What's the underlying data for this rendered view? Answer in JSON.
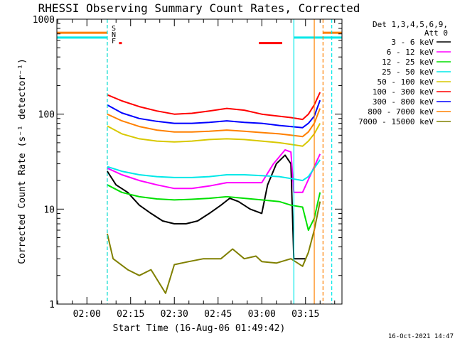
{
  "chart_data": {
    "type": "line",
    "title": "RHESSI Observing Summary Count Rates, Corrected",
    "xlabel": "Start Time (16-Aug-06 01:49:42)",
    "ylabel": "Corrected Count Rate (s⁻¹ detector⁻¹)",
    "y_scale": "log",
    "ylim": [
      1,
      1000
    ],
    "xlim": [
      "01:49:42",
      "03:27:30"
    ],
    "x_tick_labels": [
      "02:00",
      "02:15",
      "02:30",
      "02:45",
      "03:00",
      "03:15"
    ],
    "y_tick_labels": [
      "1",
      "10",
      "100",
      "1000"
    ],
    "legend": {
      "position": "top-right",
      "header": [
        "Det 1,3,4,5,6,9,",
        "Att 0"
      ],
      "entries": [
        {
          "label": "3 - 6 keV",
          "color": "#000000"
        },
        {
          "label": "6 - 12 keV",
          "color": "#ff00ff"
        },
        {
          "label": "12 - 25 keV",
          "color": "#00e000"
        },
        {
          "label": "25 - 50 keV",
          "color": "#00e8e8"
        },
        {
          "label": "50 - 100 keV",
          "color": "#d8c800"
        },
        {
          "label": "100 - 300 keV",
          "color": "#ff0000"
        },
        {
          "label": "300 - 800 keV",
          "color": "#0000ff"
        },
        {
          "label": "800 - 7000 keV",
          "color": "#ff8000"
        },
        {
          "label": "7000 - 15000 keV",
          "color": "#808000"
        }
      ]
    },
    "flag_labels": [
      {
        "label": "S",
        "color": "#ff8000"
      },
      {
        "label": "N",
        "color": "#00e8e8"
      },
      {
        "label": "F",
        "color": "#ff0000"
      }
    ],
    "series": [
      {
        "label": "3 - 6 keV",
        "color": "#000000",
        "points": [
          [
            "02:07",
            25
          ],
          [
            "02:10",
            18
          ],
          [
            "02:14",
            15
          ],
          [
            "02:18",
            11
          ],
          [
            "02:22",
            9
          ],
          [
            "02:26",
            7.5
          ],
          [
            "02:30",
            7
          ],
          [
            "02:34",
            7
          ],
          [
            "02:38",
            7.5
          ],
          [
            "02:42",
            9
          ],
          [
            "02:46",
            11
          ],
          [
            "02:49",
            13
          ],
          [
            "02:52",
            12
          ],
          [
            "02:56",
            10
          ],
          [
            "03:00",
            9
          ],
          [
            "03:02",
            18
          ],
          [
            "03:05",
            30
          ],
          [
            "03:08",
            37
          ],
          [
            "03:10",
            30
          ],
          [
            "03:11",
            3
          ],
          [
            "03:14",
            3
          ],
          [
            "03:15",
            3
          ]
        ]
      },
      {
        "label": "6 - 12 keV",
        "color": "#ff00ff",
        "points": [
          [
            "02:07",
            27
          ],
          [
            "02:12",
            23
          ],
          [
            "02:18",
            20
          ],
          [
            "02:24",
            18
          ],
          [
            "02:30",
            16.5
          ],
          [
            "02:36",
            16.5
          ],
          [
            "02:42",
            17.5
          ],
          [
            "02:48",
            19
          ],
          [
            "02:54",
            19
          ],
          [
            "03:00",
            19
          ],
          [
            "03:04",
            30
          ],
          [
            "03:08",
            42
          ],
          [
            "03:10",
            40
          ],
          [
            "03:11",
            15
          ],
          [
            "03:14",
            15
          ],
          [
            "03:18",
            28
          ],
          [
            "03:20",
            38
          ]
        ]
      },
      {
        "label": "12 - 25 keV",
        "color": "#00e000",
        "points": [
          [
            "02:07",
            18
          ],
          [
            "02:12",
            15
          ],
          [
            "02:18",
            13.5
          ],
          [
            "02:24",
            12.8
          ],
          [
            "02:30",
            12.5
          ],
          [
            "02:36",
            12.7
          ],
          [
            "02:42",
            13
          ],
          [
            "02:48",
            13.5
          ],
          [
            "02:54",
            13
          ],
          [
            "03:00",
            12.5
          ],
          [
            "03:06",
            12
          ],
          [
            "03:10",
            11
          ],
          [
            "03:14",
            10.5
          ],
          [
            "03:16",
            6
          ],
          [
            "03:18",
            8
          ],
          [
            "03:20",
            15
          ]
        ]
      },
      {
        "label": "25 - 50 keV",
        "color": "#00e8e8",
        "points": [
          [
            "02:07",
            28
          ],
          [
            "02:12",
            25
          ],
          [
            "02:18",
            23
          ],
          [
            "02:24",
            22
          ],
          [
            "02:30",
            21.5
          ],
          [
            "02:36",
            21.5
          ],
          [
            "02:42",
            22
          ],
          [
            "02:48",
            23
          ],
          [
            "02:54",
            23
          ],
          [
            "03:00",
            22.5
          ],
          [
            "03:06",
            22
          ],
          [
            "03:10",
            21
          ],
          [
            "03:14",
            20
          ],
          [
            "03:16",
            22
          ],
          [
            "03:18",
            27
          ],
          [
            "03:20",
            33
          ]
        ]
      },
      {
        "label": "50 - 100 keV",
        "color": "#d8c800",
        "points": [
          [
            "02:07",
            75
          ],
          [
            "02:12",
            62
          ],
          [
            "02:18",
            55
          ],
          [
            "02:24",
            52
          ],
          [
            "02:30",
            51
          ],
          [
            "02:36",
            52
          ],
          [
            "02:42",
            54
          ],
          [
            "02:48",
            55
          ],
          [
            "02:54",
            54
          ],
          [
            "03:00",
            52
          ],
          [
            "03:06",
            50
          ],
          [
            "03:10",
            48
          ],
          [
            "03:14",
            46
          ],
          [
            "03:16",
            52
          ],
          [
            "03:18",
            62
          ],
          [
            "03:20",
            80
          ]
        ]
      },
      {
        "label": "100 - 300 keV",
        "color": "#ff0000",
        "points": [
          [
            "02:07",
            160
          ],
          [
            "02:12",
            138
          ],
          [
            "02:18",
            120
          ],
          [
            "02:24",
            108
          ],
          [
            "02:30",
            100
          ],
          [
            "02:36",
            102
          ],
          [
            "02:42",
            108
          ],
          [
            "02:48",
            115
          ],
          [
            "02:54",
            110
          ],
          [
            "03:00",
            100
          ],
          [
            "03:06",
            95
          ],
          [
            "03:10",
            92
          ],
          [
            "03:14",
            88
          ],
          [
            "03:16",
            100
          ],
          [
            "03:18",
            125
          ],
          [
            "03:20",
            170
          ]
        ]
      },
      {
        "label": "300 - 800 keV",
        "color": "#0000ff",
        "points": [
          [
            "02:07",
            125
          ],
          [
            "02:12",
            103
          ],
          [
            "02:18",
            90
          ],
          [
            "02:24",
            84
          ],
          [
            "02:30",
            80
          ],
          [
            "02:36",
            80
          ],
          [
            "02:42",
            82
          ],
          [
            "02:48",
            85
          ],
          [
            "02:54",
            82
          ],
          [
            "03:00",
            80
          ],
          [
            "03:06",
            76
          ],
          [
            "03:10",
            74
          ],
          [
            "03:14",
            72
          ],
          [
            "03:16",
            80
          ],
          [
            "03:18",
            95
          ],
          [
            "03:20",
            140
          ]
        ]
      },
      {
        "label": "800 - 7000 keV",
        "color": "#ff8000",
        "points": [
          [
            "02:07",
            100
          ],
          [
            "02:12",
            85
          ],
          [
            "02:18",
            74
          ],
          [
            "02:24",
            68
          ],
          [
            "02:30",
            65
          ],
          [
            "02:36",
            65
          ],
          [
            "02:42",
            66
          ],
          [
            "02:48",
            68
          ],
          [
            "02:54",
            66
          ],
          [
            "03:00",
            64
          ],
          [
            "03:06",
            62
          ],
          [
            "03:10",
            60
          ],
          [
            "03:14",
            58
          ],
          [
            "03:16",
            65
          ],
          [
            "03:18",
            80
          ],
          [
            "03:20",
            115
          ]
        ]
      },
      {
        "label": "7000 - 15000 keV",
        "color": "#808000",
        "points": [
          [
            "02:07",
            5.5
          ],
          [
            "02:09",
            3
          ],
          [
            "02:14",
            2.3
          ],
          [
            "02:18",
            2
          ],
          [
            "02:22",
            2.3
          ],
          [
            "02:27",
            1.3
          ],
          [
            "02:30",
            2.6
          ],
          [
            "02:35",
            2.8
          ],
          [
            "02:40",
            3
          ],
          [
            "02:46",
            3
          ],
          [
            "02:50",
            3.8
          ],
          [
            "02:54",
            3
          ],
          [
            "02:58",
            3.2
          ],
          [
            "03:00",
            2.8
          ],
          [
            "03:05",
            2.7
          ],
          [
            "03:10",
            3
          ],
          [
            "03:14",
            2.5
          ],
          [
            "03:16",
            3.5
          ],
          [
            "03:18",
            6
          ],
          [
            "03:20",
            12
          ]
        ]
      }
    ],
    "horizontal_segments": [
      {
        "label": "S",
        "color": "#ff8000",
        "value": 720,
        "spans": [
          [
            "01:49:42",
            "02:07"
          ],
          [
            "03:21",
            "03:27:30"
          ]
        ]
      },
      {
        "label": "N",
        "color": "#00e8e8",
        "value": 640,
        "spans": [
          [
            "01:49:42",
            "02:07"
          ],
          [
            "03:11",
            "03:27:30"
          ]
        ]
      },
      {
        "label": "F",
        "color": "#ff0000",
        "value": 560,
        "spans": [
          [
            "02:11",
            "02:12"
          ],
          [
            "02:59",
            "03:07"
          ]
        ]
      }
    ],
    "vertical_markers": [
      {
        "time": "02:07",
        "color": "#ff8000",
        "style": "dashed"
      },
      {
        "time": "02:07",
        "color": "#00e8e8",
        "style": "dashed"
      },
      {
        "time": "03:21",
        "color": "#ff8000",
        "style": "dashed"
      },
      {
        "time": "03:11",
        "color": "#00e8e8",
        "style": "solid"
      },
      {
        "time": "03:18",
        "color": "#ff8000",
        "style": "solid"
      },
      {
        "time": "03:24",
        "color": "#00e8e8",
        "style": "dashed"
      }
    ]
  },
  "footer": {
    "timestamp": "16-Oct-2021 14:47"
  }
}
